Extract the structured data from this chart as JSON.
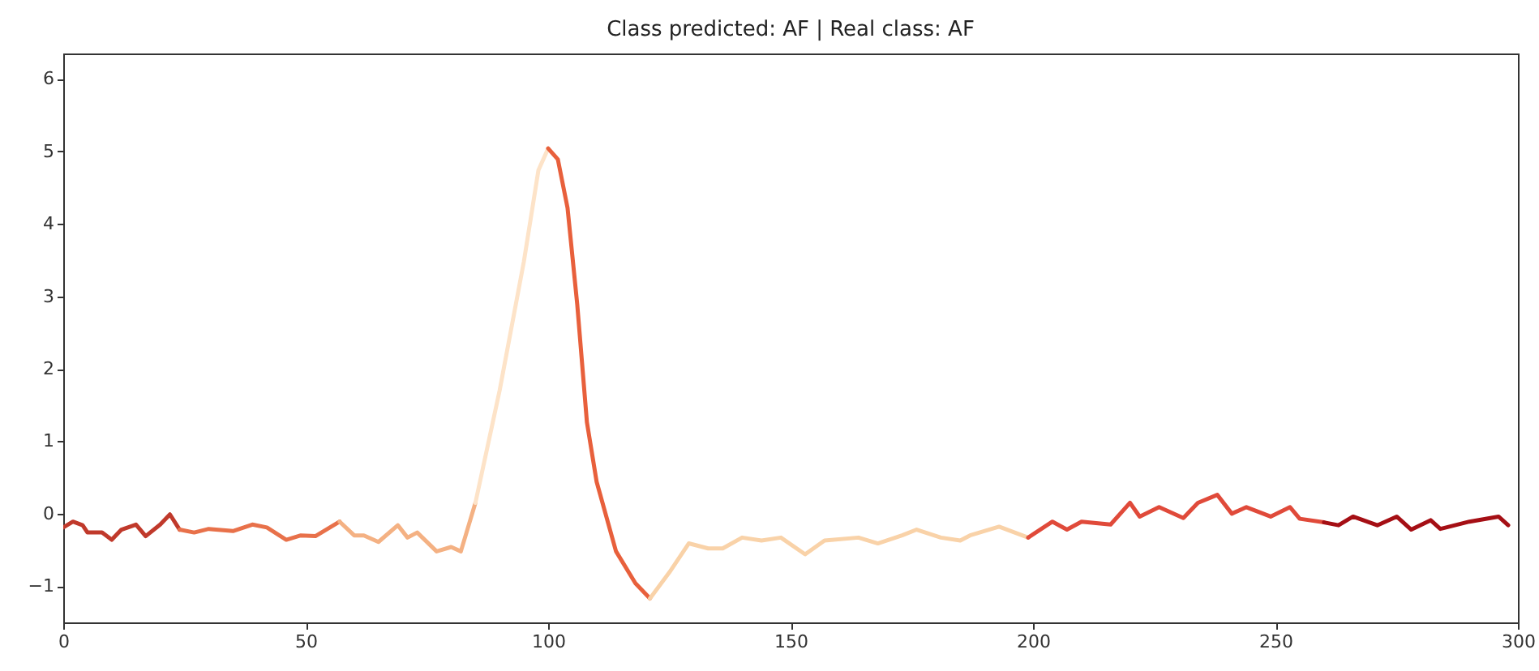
{
  "chart_data": {
    "type": "line",
    "title": "Class predicted: AF | Real class: AF",
    "xlim": [
      0,
      300
    ],
    "xticks": [
      0,
      50,
      100,
      150,
      200,
      250,
      300
    ],
    "ylim": [
      -1.5,
      6.35
    ],
    "yticks": [
      -1,
      0,
      1,
      2,
      3,
      4,
      5,
      6
    ],
    "grid": false,
    "legend": false,
    "line_style": "solid",
    "marker": "none",
    "series": [
      {
        "color": "#c0392b",
        "x": [
          0,
          2,
          4,
          5,
          8,
          10,
          12,
          15,
          17,
          20,
          22,
          24
        ],
        "values": [
          -0.19,
          -0.11,
          -0.16,
          -0.26,
          -0.26,
          -0.36,
          -0.22,
          -0.15,
          -0.31,
          -0.15,
          -0.01,
          -0.22
        ]
      },
      {
        "color": "#e8714a",
        "x": [
          24,
          27,
          30,
          35,
          39,
          42,
          46,
          49,
          52,
          57
        ],
        "values": [
          -0.22,
          -0.26,
          -0.21,
          -0.24,
          -0.15,
          -0.19,
          -0.36,
          -0.3,
          -0.31,
          -0.11
        ]
      },
      {
        "color": "#f4b183",
        "x": [
          57,
          60,
          62,
          65,
          69,
          71,
          73,
          77,
          80,
          82,
          85
        ],
        "values": [
          -0.11,
          -0.3,
          -0.3,
          -0.39,
          -0.16,
          -0.33,
          -0.26,
          -0.52,
          -0.46,
          -0.52,
          0.15
        ]
      },
      {
        "color": "#fde3c8",
        "x": [
          85,
          90,
          95,
          98,
          100
        ],
        "values": [
          0.15,
          1.7,
          3.48,
          4.74,
          5.04
        ]
      },
      {
        "color": "#e8603c",
        "x": [
          100,
          102,
          104,
          106,
          108,
          110,
          114,
          118,
          121
        ],
        "values": [
          5.04,
          4.89,
          4.22,
          2.89,
          1.26,
          0.44,
          -0.52,
          -0.96,
          -1.17
        ]
      },
      {
        "color": "#f9d2a8",
        "x": [
          121,
          125,
          129,
          133,
          136,
          140,
          144,
          148,
          153,
          157,
          164,
          168,
          173,
          176,
          181,
          185,
          187,
          193,
          199
        ],
        "values": [
          -1.17,
          -0.81,
          -0.41,
          -0.48,
          -0.48,
          -0.33,
          -0.37,
          -0.33,
          -0.56,
          -0.37,
          -0.33,
          -0.41,
          -0.3,
          -0.22,
          -0.33,
          -0.37,
          -0.3,
          -0.18,
          -0.33
        ]
      },
      {
        "color": "#e04a3a",
        "x": [
          199,
          204,
          207,
          210,
          216,
          220,
          222,
          226,
          231,
          234,
          238,
          241,
          244,
          249,
          253,
          255,
          260
        ],
        "values": [
          -0.33,
          -0.11,
          -0.22,
          -0.11,
          -0.15,
          0.15,
          -0.04,
          0.09,
          -0.06,
          0.15,
          0.26,
          0,
          0.09,
          -0.04,
          0.09,
          -0.07,
          -0.12
        ]
      },
      {
        "color": "#a50f15",
        "x": [
          260,
          263,
          266,
          271,
          275,
          278,
          282,
          284,
          290,
          296,
          298
        ],
        "values": [
          -0.12,
          -0.16,
          -0.04,
          -0.16,
          -0.04,
          -0.22,
          -0.09,
          -0.21,
          -0.11,
          -0.04,
          -0.16
        ]
      }
    ]
  }
}
